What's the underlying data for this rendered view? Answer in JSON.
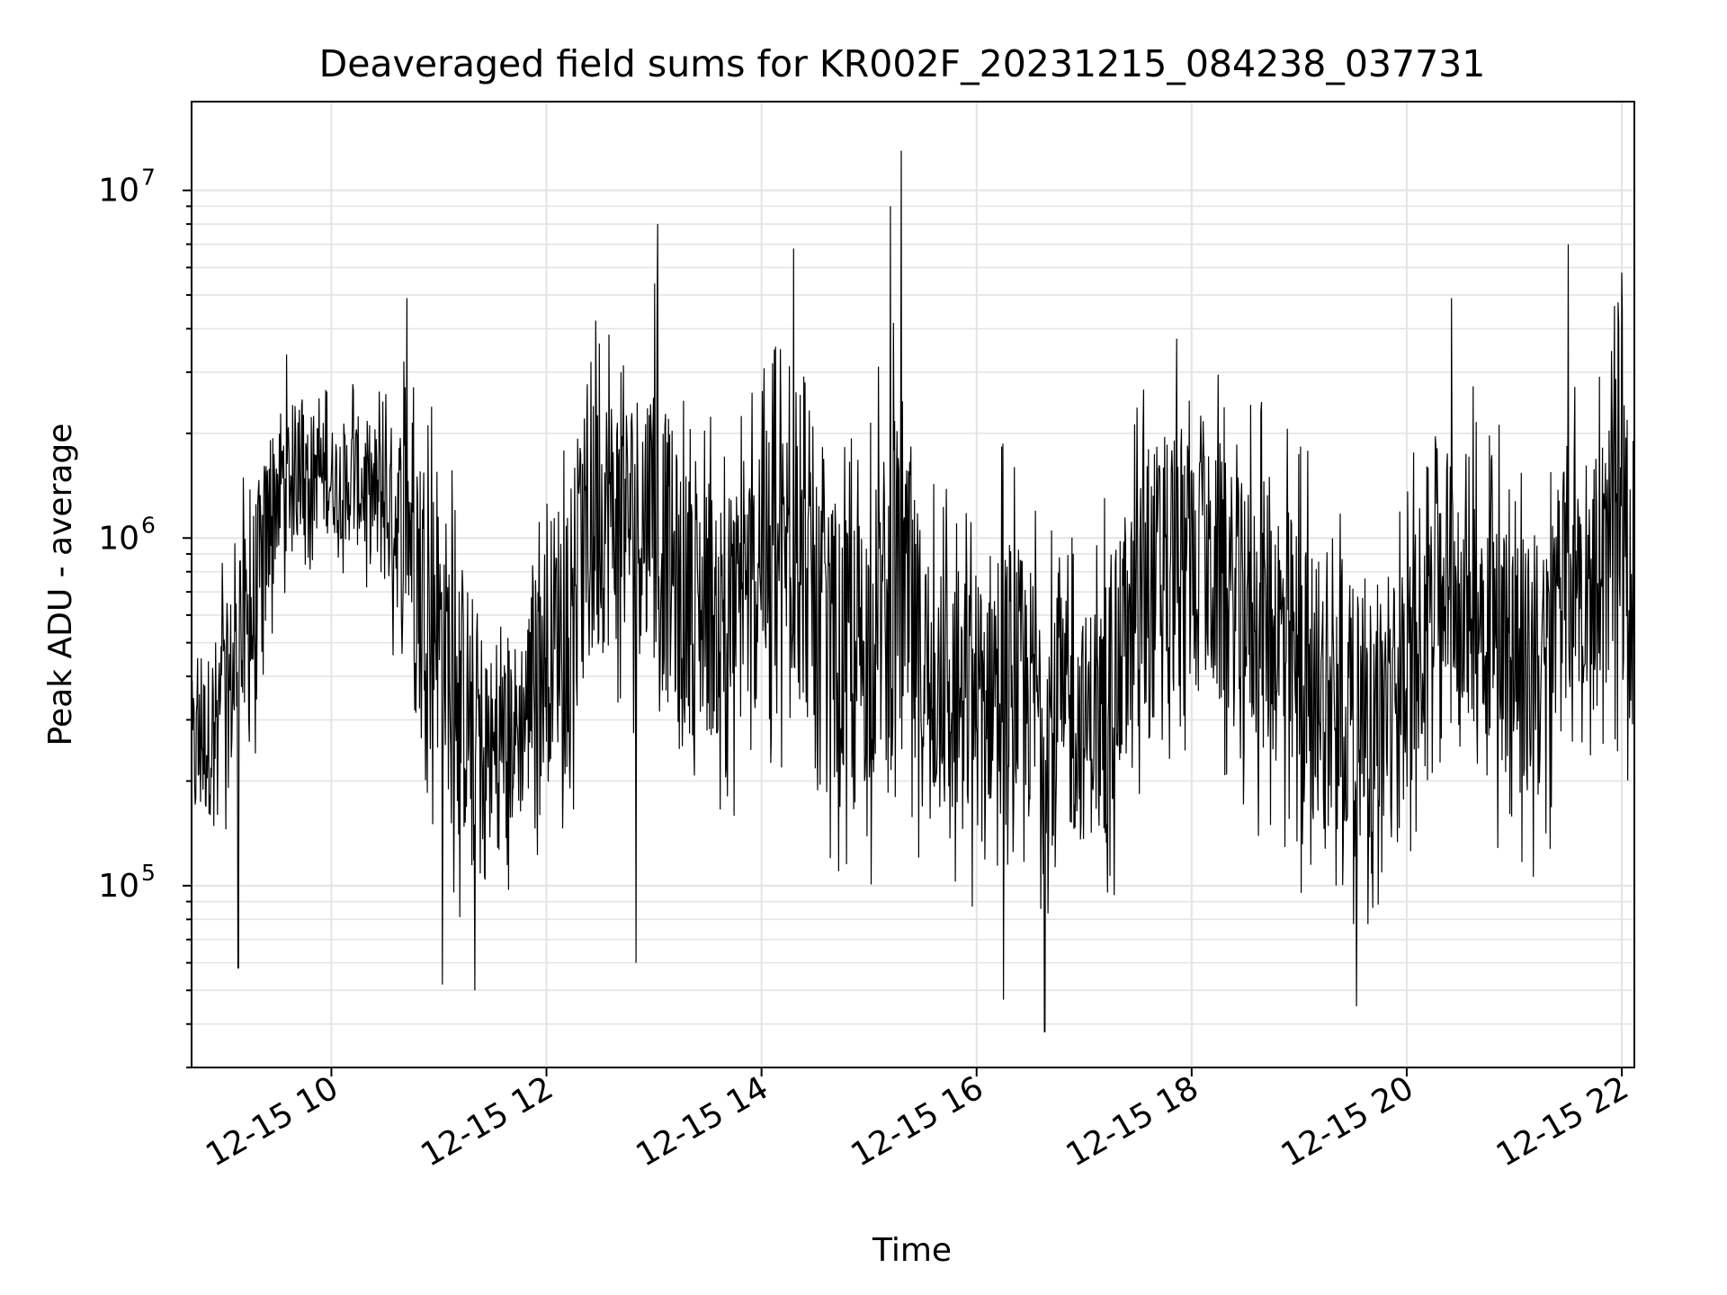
{
  "chart_data": {
    "type": "line",
    "title": "Deaveraged field sums for KR002F_20231215_084238_037731",
    "xlabel": "Time",
    "ylabel": "Peak ADU - average",
    "x_axis": "time",
    "y_scale": "log",
    "xlim": [
      "2023-12-15 08:42",
      "2023-12-15 22:07"
    ],
    "ylim": [
      30000,
      18000000
    ],
    "xticks": [
      {
        "value": "2023-12-15 10:00",
        "label": "12-15 10"
      },
      {
        "value": "2023-12-15 12:00",
        "label": "12-15 12"
      },
      {
        "value": "2023-12-15 14:00",
        "label": "12-15 14"
      },
      {
        "value": "2023-12-15 16:00",
        "label": "12-15 16"
      },
      {
        "value": "2023-12-15 18:00",
        "label": "12-15 18"
      },
      {
        "value": "2023-12-15 20:00",
        "label": "12-15 20"
      },
      {
        "value": "2023-12-15 22:00",
        "label": "12-15 22"
      }
    ],
    "yticks": [
      {
        "value": 100000,
        "base": "10",
        "exp": "5"
      },
      {
        "value": 1000000,
        "base": "10",
        "exp": "6"
      },
      {
        "value": 10000000,
        "base": "10",
        "exp": "7"
      }
    ],
    "grid": true,
    "line_color": "#000000",
    "series": [
      {
        "x": [
          "2023-12-15 08:45",
          "2023-12-15 09:00",
          "2023-12-15 09:15",
          "2023-12-15 09:30",
          "2023-12-15 09:45",
          "2023-12-15 10:00",
          "2023-12-15 10:15",
          "2023-12-15 10:30",
          "2023-12-15 10:45",
          "2023-12-15 11:00",
          "2023-12-15 11:15",
          "2023-12-15 11:30",
          "2023-12-15 11:45",
          "2023-12-15 12:00",
          "2023-12-15 12:15",
          "2023-12-15 12:30",
          "2023-12-15 12:45",
          "2023-12-15 13:00",
          "2023-12-15 13:15",
          "2023-12-15 13:30",
          "2023-12-15 13:45",
          "2023-12-15 14:00",
          "2023-12-15 14:15",
          "2023-12-15 14:30",
          "2023-12-15 14:45",
          "2023-12-15 15:00",
          "2023-12-15 15:15",
          "2023-12-15 15:30",
          "2023-12-15 15:45",
          "2023-12-15 16:00",
          "2023-12-15 16:15",
          "2023-12-15 16:30",
          "2023-12-15 16:45",
          "2023-12-15 17:00",
          "2023-12-15 17:15",
          "2023-12-15 17:30",
          "2023-12-15 17:45",
          "2023-12-15 18:00",
          "2023-12-15 18:15",
          "2023-12-15 18:30",
          "2023-12-15 18:45",
          "2023-12-15 19:00",
          "2023-12-15 19:15",
          "2023-12-15 19:30",
          "2023-12-15 19:45",
          "2023-12-15 20:00",
          "2023-12-15 20:15",
          "2023-12-15 20:30",
          "2023-12-15 20:45",
          "2023-12-15 21:00",
          "2023-12-15 21:15",
          "2023-12-15 21:30",
          "2023-12-15 21:45",
          "2023-12-15 22:00",
          "2023-12-15 22:05"
        ],
        "y": [
          250000,
          350000,
          500000,
          1500000,
          1600000,
          1500000,
          1600000,
          1300000,
          900000,
          400000,
          250000,
          220000,
          230000,
          320000,
          450000,
          800000,
          1000000,
          800000,
          600000,
          500000,
          550000,
          700000,
          800000,
          650000,
          400000,
          400000,
          500000,
          350000,
          300000,
          300000,
          380000,
          350000,
          300000,
          250000,
          320000,
          450000,
          700000,
          800000,
          700000,
          600000,
          450000,
          350000,
          350000,
          320000,
          330000,
          380000,
          800000,
          700000,
          550000,
          400000,
          350000,
          700000,
          900000,
          700000,
          600000
        ],
        "y_min": [
          100000,
          120000,
          150000,
          600000,
          800000,
          800000,
          700000,
          500000,
          300000,
          120000,
          70000,
          80000,
          100000,
          130000,
          150000,
          250000,
          300000,
          200000,
          150000,
          150000,
          150000,
          200000,
          200000,
          150000,
          100000,
          100000,
          100000,
          90000,
          80000,
          80000,
          100000,
          80000,
          80000,
          80000,
          90000,
          120000,
          180000,
          200000,
          180000,
          150000,
          120000,
          90000,
          80000,
          70000,
          80000,
          100000,
          200000,
          180000,
          150000,
          100000,
          100000,
          180000,
          250000,
          200000,
          150000
        ],
        "y_max": [
          550000,
          900000,
          2000000,
          3500000,
          3200000,
          2700000,
          3000000,
          3000000,
          4000000,
          2500000,
          1500000,
          700000,
          800000,
          1800000,
          3500000,
          5300000,
          4500000,
          6500000,
          3000000,
          2500000,
          2500000,
          3500000,
          4500000,
          2500000,
          2000000,
          2500000,
          5000000,
          2000000,
          1500000,
          1500000,
          2000000,
          1500000,
          1200000,
          1000000,
          1500000,
          2500000,
          4300000,
          3500000,
          3000000,
          2500000,
          2800000,
          2000000,
          1500000,
          1200000,
          1200000,
          1500000,
          3500000,
          3500000,
          2500000,
          2000000,
          1500000,
          3500000,
          3000000,
          5500000,
          4000000
        ],
        "spikes": [
          {
            "x": "2023-12-15 09:08",
            "y": 58000
          },
          {
            "x": "2023-12-15 10:42",
            "y": 4900000
          },
          {
            "x": "2023-12-15 11:02",
            "y": 52000
          },
          {
            "x": "2023-12-15 11:20",
            "y": 50000
          },
          {
            "x": "2023-12-15 12:50",
            "y": 60000
          },
          {
            "x": "2023-12-15 13:02",
            "y": 8000000
          },
          {
            "x": "2023-12-15 14:18",
            "y": 6800000
          },
          {
            "x": "2023-12-15 15:12",
            "y": 9000000
          },
          {
            "x": "2023-12-15 15:18",
            "y": 13000000
          },
          {
            "x": "2023-12-15 16:15",
            "y": 47000
          },
          {
            "x": "2023-12-15 16:38",
            "y": 38000
          },
          {
            "x": "2023-12-15 19:32",
            "y": 45000
          },
          {
            "x": "2023-12-15 20:25",
            "y": 4900000
          },
          {
            "x": "2023-12-15 21:30",
            "y": 7000000
          },
          {
            "x": "2023-12-15 22:00",
            "y": 5800000
          }
        ]
      }
    ]
  }
}
